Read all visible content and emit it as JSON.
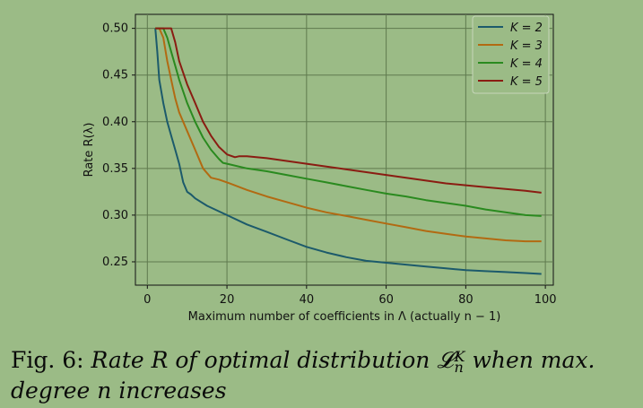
{
  "chart_data": {
    "type": "line",
    "xlabel": "Maximum number of coefficients in Λ (actually n − 1)",
    "ylabel": "Rate R(λ)",
    "xlim": [
      -3,
      102
    ],
    "ylim": [
      0.225,
      0.515
    ],
    "xticks": [
      0,
      20,
      40,
      60,
      80,
      100
    ],
    "yticks": [
      0.25,
      0.3,
      0.35,
      0.4,
      0.45,
      0.5
    ],
    "xtick_labels": [
      "0",
      "20",
      "40",
      "60",
      "80",
      "100"
    ],
    "ytick_labels": [
      "0.25",
      "0.30",
      "0.35",
      "0.40",
      "0.45",
      "0.50"
    ],
    "grid": true,
    "legend_position": "top-right",
    "series": [
      {
        "name": "K = 2",
        "color": "#1c5a6b",
        "x": [
          2,
          2.5,
          3,
          4,
          5,
          6,
          7,
          8,
          9,
          10,
          11,
          12,
          15,
          20,
          25,
          30,
          35,
          40,
          45,
          50,
          55,
          60,
          65,
          70,
          75,
          80,
          85,
          90,
          95,
          99
        ],
        "y": [
          0.5,
          0.475,
          0.445,
          0.42,
          0.4,
          0.385,
          0.37,
          0.355,
          0.335,
          0.325,
          0.322,
          0.318,
          0.31,
          0.3,
          0.29,
          0.282,
          0.274,
          0.266,
          0.26,
          0.255,
          0.251,
          0.249,
          0.247,
          0.245,
          0.243,
          0.241,
          0.24,
          0.239,
          0.238,
          0.237
        ]
      },
      {
        "name": "K = 3",
        "color": "#b26a12",
        "x": [
          2,
          3,
          4,
          5,
          6,
          7,
          8,
          10,
          12,
          14,
          16,
          18,
          20,
          25,
          30,
          35,
          40,
          45,
          50,
          55,
          60,
          65,
          70,
          75,
          80,
          85,
          90,
          95,
          99
        ],
        "y": [
          0.5,
          0.5,
          0.49,
          0.465,
          0.445,
          0.425,
          0.41,
          0.39,
          0.37,
          0.35,
          0.34,
          0.338,
          0.335,
          0.327,
          0.32,
          0.314,
          0.308,
          0.303,
          0.299,
          0.295,
          0.291,
          0.287,
          0.283,
          0.28,
          0.277,
          0.275,
          0.273,
          0.272,
          0.272
        ]
      },
      {
        "name": "K = 4",
        "color": "#2a8a1f",
        "x": [
          2,
          3,
          4,
          5,
          6,
          7,
          8,
          10,
          12,
          14,
          16,
          18,
          19,
          20,
          25,
          30,
          35,
          40,
          45,
          50,
          55,
          60,
          65,
          70,
          75,
          80,
          85,
          90,
          95,
          99
        ],
        "y": [
          0.5,
          0.5,
          0.5,
          0.49,
          0.475,
          0.46,
          0.445,
          0.42,
          0.4,
          0.383,
          0.37,
          0.36,
          0.356,
          0.355,
          0.35,
          0.347,
          0.343,
          0.339,
          0.335,
          0.331,
          0.327,
          0.323,
          0.32,
          0.316,
          0.313,
          0.31,
          0.306,
          0.303,
          0.3,
          0.299
        ]
      },
      {
        "name": "K = 5",
        "color": "#8a1c12",
        "x": [
          2,
          4,
          6,
          7,
          8,
          10,
          12,
          14,
          16,
          18,
          20,
          22,
          23,
          25,
          30,
          35,
          40,
          45,
          50,
          55,
          60,
          65,
          70,
          75,
          80,
          85,
          90,
          95,
          99
        ],
        "y": [
          0.5,
          0.5,
          0.5,
          0.485,
          0.465,
          0.44,
          0.42,
          0.4,
          0.385,
          0.373,
          0.365,
          0.362,
          0.363,
          0.363,
          0.361,
          0.358,
          0.355,
          0.352,
          0.349,
          0.346,
          0.343,
          0.34,
          0.337,
          0.334,
          0.332,
          0.33,
          0.328,
          0.326,
          0.324
        ]
      }
    ]
  },
  "caption": {
    "prefix": "Fig. 6: ",
    "text_before": "Rate ",
    "symbol_R": "R",
    "text_middle": " of optimal distribution ",
    "symbol_L": "𝓛",
    "symbol_sup": "K",
    "symbol_sub": "n",
    "text_after": " when max. degree ",
    "symbol_n": "n",
    "text_end": " increases"
  }
}
